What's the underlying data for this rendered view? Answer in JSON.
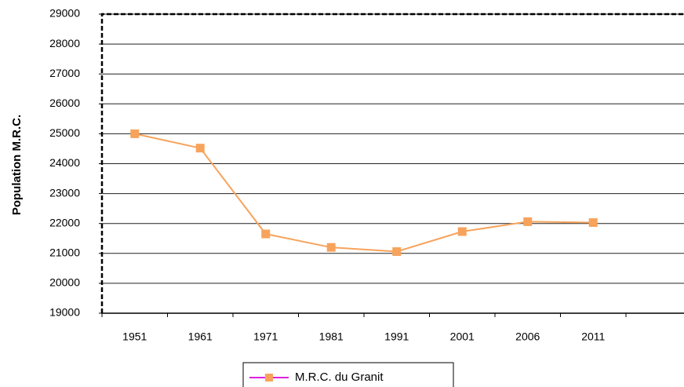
{
  "chart_data": {
    "type": "line",
    "y_label": "Population M.R.C.",
    "categories": [
      "1951",
      "1961",
      "1971",
      "1981",
      "1991",
      "2001",
      "2006",
      "2011"
    ],
    "series": [
      {
        "name": "M.R.C. du Granit",
        "color": "#f7a35c",
        "values": [
          25000,
          24520,
          21650,
          21200,
          21060,
          21730,
          22060,
          22030
        ]
      }
    ],
    "ylim": [
      19000,
      29000
    ],
    "yticks": [
      19000,
      20000,
      21000,
      22000,
      23000,
      24000,
      25000,
      26000,
      27000,
      28000,
      29000
    ],
    "grid": true
  }
}
